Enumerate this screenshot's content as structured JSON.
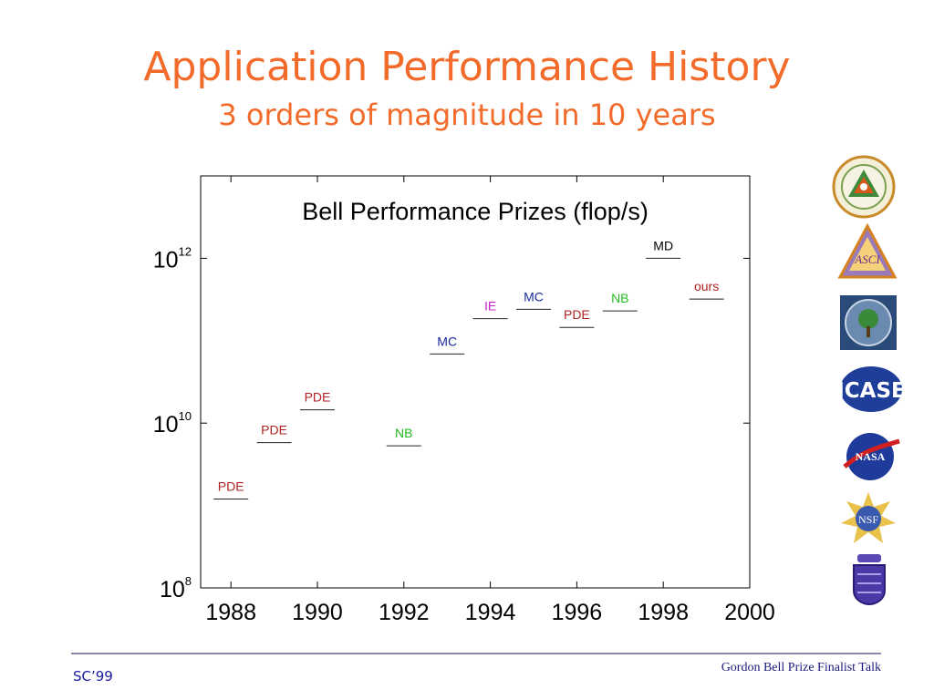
{
  "slide": {
    "title": "Application Performance History",
    "subtitle": "3 orders of magnitude in 10 years",
    "footer_left": "SC’99",
    "footer_right": "Gordon Bell Prize Finalist Talk"
  },
  "colors": {
    "heading": "#f26b2a",
    "PDE": "#b22222",
    "NB": "#22bb22",
    "MC": "#1a2a9a",
    "IE": "#cc22cc",
    "MD": "#000000",
    "ours": "#b22222"
  },
  "logos": [
    "argonne-seal-icon",
    "asci-triangle-icon",
    "doe-seal-icon",
    "icase-logo-icon",
    "nasa-logo-icon",
    "nsf-logo-icon",
    "crest-icon"
  ],
  "chart_data": {
    "type": "scatter",
    "title": "Bell Performance Prizes (flop/s)",
    "xlabel": "",
    "ylabel": "",
    "xlim": [
      1987.3,
      2000
    ],
    "ylim": [
      100000000.0,
      10000000000000.0
    ],
    "log_y": true,
    "grid": false,
    "x_ticks": [
      1988,
      1990,
      1992,
      1994,
      1996,
      1998,
      2000
    ],
    "y_ticks": [
      {
        "base": "10",
        "exp": "8",
        "value": 100000000.0
      },
      {
        "base": "10",
        "exp": "10",
        "value": 10000000000.0
      },
      {
        "base": "10",
        "exp": "12",
        "value": 1000000000000.0
      }
    ],
    "points": [
      {
        "year": 1988,
        "flops": 1200000000.0,
        "label": "PDE"
      },
      {
        "year": 1989,
        "flops": 5800000000.0,
        "label": "PDE"
      },
      {
        "year": 1990,
        "flops": 14500000000.0,
        "label": "PDE"
      },
      {
        "year": 1992,
        "flops": 5300000000.0,
        "label": "NB"
      },
      {
        "year": 1993,
        "flops": 69000000000.0,
        "label": "MC"
      },
      {
        "year": 1994,
        "flops": 185000000000.0,
        "label": "IE"
      },
      {
        "year": 1995,
        "flops": 240000000000.0,
        "label": "MC"
      },
      {
        "year": 1996,
        "flops": 145000000000.0,
        "label": "PDE"
      },
      {
        "year": 1997,
        "flops": 230000000000.0,
        "label": "NB"
      },
      {
        "year": 1998,
        "flops": 1000000000000.0,
        "label": "MD"
      },
      {
        "year": 1999,
        "flops": 320000000000.0,
        "label": "ours"
      }
    ]
  }
}
